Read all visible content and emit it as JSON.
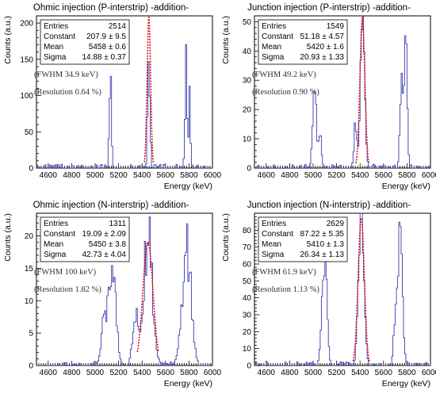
{
  "colors": {
    "histogram": "#3b3bb0",
    "fit": "#e0101a",
    "axis": "#000000",
    "background": "#ffffff"
  },
  "chart_data": [
    {
      "type": "line",
      "title": "Ohmic injection (P-interstrip) -addition-",
      "xlabel": "Energy (keV)",
      "ylabel": "Counts (a.u.)",
      "xlim": [
        4500,
        6000
      ],
      "ylim": [
        0,
        210
      ],
      "xticks": [
        "4600",
        "4800",
        "5000",
        "5200",
        "5400",
        "5600",
        "5800",
        "6000"
      ],
      "yticks": [
        "0",
        "50",
        "100",
        "150",
        "200"
      ],
      "stats": {
        "entries_label": "Entries",
        "entries": "2514",
        "constant_label": "Constant",
        "constant": "207.9 ± 9.5",
        "mean_label": "Mean",
        "mean": "5458 ± 0.6",
        "sigma_label": "Sigma",
        "sigma": "14.88 ± 0.37"
      },
      "annotations": [
        "(FWHM    34.9 keV)",
        "(Resolution 0.64 %)"
      ],
      "peaks": [
        {
          "x": 5130,
          "h": 138,
          "w": 9
        },
        {
          "x": 5458,
          "h": 172,
          "w": 9
        },
        {
          "x": 5775,
          "h": 155,
          "w": 9
        },
        {
          "x": 5805,
          "h": 118,
          "w": 7
        }
      ],
      "fit": {
        "constant": 207.9,
        "mean": 5458,
        "sigma": 14.88,
        "from": 5420,
        "to": 5496
      }
    },
    {
      "type": "line",
      "title": "Junction injection (P-interstrip) -addition-",
      "xlabel": "Energy (keV)",
      "ylabel": "Counts (a.u.)",
      "xlim": [
        4500,
        6000
      ],
      "ylim": [
        0,
        52
      ],
      "xticks": [
        "4600",
        "4800",
        "5000",
        "5200",
        "5400",
        "5600",
        "5800",
        "6000"
      ],
      "yticks": [
        "0",
        "10",
        "20",
        "30",
        "40",
        "50"
      ],
      "stats": {
        "entries_label": "Entries",
        "entries": "1549",
        "constant_label": "Constant",
        "constant": "51.18 ± 4.57",
        "mean_label": "Mean",
        "mean": "5420 ± 1.6",
        "sigma_label": "Sigma",
        "sigma": "20.93 ± 1.33"
      },
      "annotations": [
        "(FWHM    49.2 keV)",
        "(Resolution 0.90 %)"
      ],
      "peaks": [
        {
          "x": 5010,
          "h": 30,
          "w": 14
        },
        {
          "x": 5055,
          "h": 12,
          "w": 14
        },
        {
          "x": 5360,
          "h": 16,
          "w": 12
        },
        {
          "x": 5420,
          "h": 50,
          "w": 18
        },
        {
          "x": 5755,
          "h": 28,
          "w": 14
        },
        {
          "x": 5790,
          "h": 40,
          "w": 12
        }
      ],
      "fit": {
        "constant": 51.18,
        "mean": 5420,
        "sigma": 20.93,
        "from": 5365,
        "to": 5475
      }
    },
    {
      "type": "line",
      "title": "Ohmic injection (N-interstrip) -addition-",
      "xlabel": "Energy (keV)",
      "ylabel": "Counts (a.u.)",
      "xlim": [
        4500,
        6000
      ],
      "ylim": [
        0,
        23.5
      ],
      "xticks": [
        "4600",
        "4800",
        "5000",
        "5200",
        "5400",
        "5600",
        "5800",
        "6000"
      ],
      "yticks": [
        "0",
        "5",
        "10",
        "15",
        "20"
      ],
      "stats": {
        "entries_label": "Entries",
        "entries": "1311",
        "constant_label": "Constant",
        "constant": "19.09 ± 2.09",
        "mean_label": "Mean",
        "mean": "5450 ± 3.8",
        "sigma_label": "Sigma",
        "sigma": "42.73 ± 4.04"
      },
      "annotations": [
        "(FWHM    100 keV)",
        "(Resolution 1.82 %)"
      ],
      "peaks": [
        {
          "x": 5150,
          "h": 16,
          "w": 28
        },
        {
          "x": 5080,
          "h": 7,
          "w": 25
        },
        {
          "x": 5340,
          "h": 8,
          "w": 22
        },
        {
          "x": 5450,
          "h": 20,
          "w": 38
        },
        {
          "x": 5780,
          "h": 18,
          "w": 38
        }
      ],
      "fit": {
        "constant": 19.09,
        "mean": 5450,
        "sigma": 42.73,
        "from": 5360,
        "to": 5540
      }
    },
    {
      "type": "line",
      "title": "Junction injection (N-interstrip) -addition-",
      "xlabel": "Energy (keV)",
      "ylabel": "Counts (a.u.)",
      "xlim": [
        4500,
        6000
      ],
      "ylim": [
        0,
        90
      ],
      "xticks": [
        "4600",
        "4800",
        "5000",
        "5200",
        "5400",
        "5600",
        "5800",
        "6000"
      ],
      "yticks": [
        "0",
        "10",
        "20",
        "30",
        "40",
        "50",
        "60",
        "70",
        "80"
      ],
      "stats": {
        "entries_label": "Entries",
        "entries": "2629",
        "constant_label": "Constant",
        "constant": "87.22 ± 5.35",
        "mean_label": "Mean",
        "mean": "5410 ± 1.3",
        "sigma_label": "Sigma",
        "sigma": "26.34 ± 1.13"
      },
      "annotations": [
        "(FWHM    61.9 keV)",
        "(Resolution 1.13 %)"
      ],
      "peaks": [
        {
          "x": 5095,
          "h": 68,
          "w": 20
        },
        {
          "x": 5410,
          "h": 84,
          "w": 22
        },
        {
          "x": 5740,
          "h": 72,
          "w": 20
        },
        {
          "x": 5700,
          "h": 20,
          "w": 16
        }
      ],
      "fit": {
        "constant": 87.22,
        "mean": 5410,
        "sigma": 26.34,
        "from": 5340,
        "to": 5480
      }
    }
  ]
}
